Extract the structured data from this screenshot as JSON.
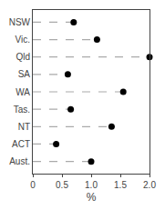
{
  "chart_data": {
    "type": "lollipop",
    "orientation": "horizontal",
    "categories": [
      "NSW",
      "Vic.",
      "Qld",
      "SA",
      "WA",
      "Tas.",
      "NT",
      "ACT",
      "Aust."
    ],
    "values": [
      0.7,
      1.1,
      2.0,
      0.6,
      1.55,
      0.65,
      1.35,
      0.4,
      1.0
    ],
    "xlabel": "%",
    "xlim": [
      0,
      2.0
    ],
    "xticks": [
      0,
      0.5,
      {
        "value": 1.0,
        "label": "1.0"
      },
      1.5,
      {
        "value": 2.0,
        "label": "2.0"
      }
    ],
    "color": "black",
    "marker": "circle",
    "line_style": "dashed",
    "grid": false
  }
}
